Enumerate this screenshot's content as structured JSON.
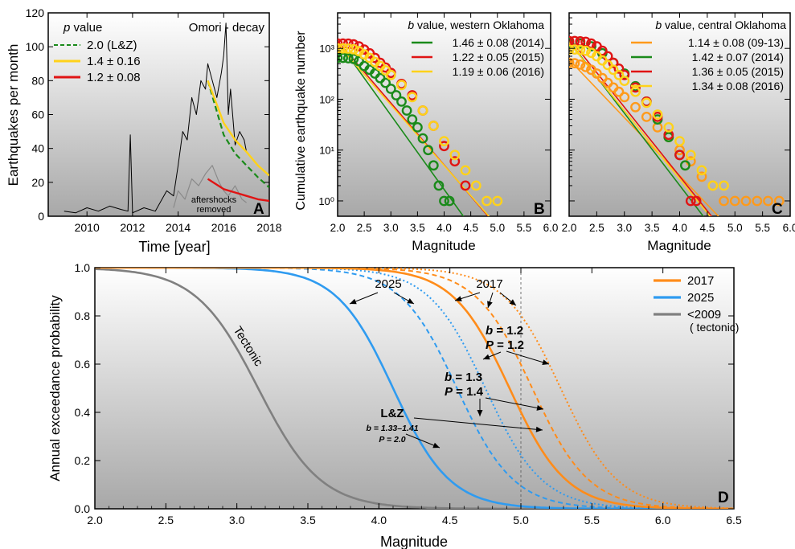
{
  "panels": {
    "A": {
      "letter": "A",
      "ylabel": "Earthquakes per month",
      "xlabel": "Time [year]",
      "xticks": [
        "2010",
        "2012",
        "2014",
        "2016",
        "2018"
      ],
      "yticks": [
        "0",
        "20",
        "40",
        "60",
        "80",
        "100",
        "120"
      ],
      "legend_title": "p value",
      "legend_title_italic": "p",
      "legend_title_rest": " value",
      "corner_label": "Omori - decay",
      "legend": [
        {
          "label": "2.0 (L&Z)",
          "color": "#1a8a1a",
          "dash": true
        },
        {
          "label": "1.4 ± 0.16",
          "color": "#ffd21a",
          "dash": false
        },
        {
          "label": "1.2 ± 0.08",
          "color": "#e01414",
          "dash": false
        }
      ],
      "aftershock_note_1": "aftershocks",
      "aftershock_note_2": "removed"
    },
    "B": {
      "letter": "B",
      "ylabel": "Cumulative earthquake number",
      "xlabel": "Magnitude",
      "xticks": [
        "2.0",
        "2.5",
        "3.0",
        "3.5",
        "4.0",
        "4.5",
        "5.0",
        "5.5",
        "6.0"
      ],
      "yticks": [
        "10⁰",
        "10¹",
        "10²",
        "10³"
      ],
      "legend_title_italic": "b",
      "legend_title_rest": " value,  western Oklahoma",
      "legend": [
        {
          "label": "1.46 ± 0.08 (2014)",
          "color": "#1a8a1a"
        },
        {
          "label": "1.22 ± 0.05 (2015)",
          "color": "#e01414"
        },
        {
          "label": "1.19 ± 0.06 (2016)",
          "color": "#ffd21a"
        }
      ]
    },
    "C": {
      "letter": "C",
      "xlabel": "Magnitude",
      "xticks": [
        "2.0",
        "2.5",
        "3.0",
        "3.5",
        "4.0",
        "4.5",
        "5.0",
        "5.5",
        "6.0"
      ],
      "legend_title_italic": "b",
      "legend_title_rest": " value, central Oklahoma",
      "legend": [
        {
          "label": "1.14 ± 0.08 (09-13)",
          "color": "#ff9a1a"
        },
        {
          "label": "1.42 ± 0.07 (2014)",
          "color": "#1a8a1a"
        },
        {
          "label": "1.36 ± 0.05 (2015)",
          "color": "#e01414"
        },
        {
          "label": "1.34 ± 0.08 (2016)",
          "color": "#ffd21a"
        }
      ]
    },
    "D": {
      "letter": "D",
      "ylabel": "Annual exceedance probability",
      "xlabel": "Magnitude",
      "xticks": [
        "2.0",
        "2.5",
        "3.0",
        "3.5",
        "4.0",
        "4.5",
        "5.0",
        "5.5",
        "6.0",
        "6.5"
      ],
      "yticks": [
        "0.0",
        "0.2",
        "0.4",
        "0.6",
        "0.8",
        "1.0"
      ],
      "legend": [
        {
          "label": "2017",
          "color": "#ff8c1a"
        },
        {
          "label": "2025",
          "color": "#2f9bf0"
        },
        {
          "label": "<2009",
          "color": "#808080"
        }
      ],
      "legend_sub": "( tectonic)",
      "annotations": {
        "tectonic": "Tectonic",
        "y2025": "2025",
        "y2017": "2017",
        "b12": "b = 1.2",
        "p12": "P = 1.2",
        "b13": "b = 1.3",
        "p14": "P = 1.4",
        "lz": "L&Z",
        "lz_b": "b = 1.33–1.41",
        "lz_p": "P = 2.0"
      }
    }
  },
  "colors": {
    "green": "#1a8a1a",
    "red": "#e01414",
    "yellow": "#ffd21a",
    "orange": "#ff8c1a",
    "orange_light": "#ff9a1a",
    "blue": "#2f9bf0",
    "gray": "#808080"
  },
  "chart_data": [
    {
      "panel": "A",
      "type": "line",
      "title": "",
      "xlabel": "Time [year]",
      "ylabel": "Earthquakes per month",
      "xlim": [
        2008.3,
        2018
      ],
      "ylim": [
        0,
        120
      ],
      "series": [
        {
          "name": "monthly count",
          "x": [
            2009.0,
            2009.5,
            2010.0,
            2010.5,
            2011.0,
            2011.5,
            2011.8,
            2011.9,
            2012.0,
            2012.5,
            2013.0,
            2013.5,
            2013.8,
            2014.0,
            2014.2,
            2014.4,
            2014.6,
            2014.8,
            2015.0,
            2015.2,
            2015.3,
            2015.5,
            2015.7,
            2015.9,
            2016.0,
            2016.1,
            2016.2,
            2016.3,
            2016.5,
            2016.7,
            2016.9,
            2017.0
          ],
          "y": [
            3,
            2,
            5,
            3,
            6,
            4,
            3,
            48,
            2,
            5,
            3,
            15,
            12,
            30,
            50,
            45,
            70,
            60,
            80,
            75,
            90,
            80,
            70,
            85,
            95,
            114,
            60,
            75,
            42,
            50,
            45,
            38
          ]
        },
        {
          "name": "aftershocks removed",
          "x": [
            2013.8,
            2014.0,
            2014.3,
            2014.6,
            2014.9,
            2015.2,
            2015.5,
            2015.8,
            2016.0,
            2016.2,
            2016.5,
            2016.8,
            2017.0
          ],
          "y": [
            5,
            15,
            10,
            22,
            18,
            25,
            30,
            20,
            15,
            12,
            18,
            10,
            8
          ]
        },
        {
          "name": "2.0 (L&Z)",
          "x": [
            2015.3,
            2016,
            2016.5,
            2017,
            2017.5,
            2018
          ],
          "y": [
            80,
            48,
            37,
            30,
            23,
            17
          ]
        },
        {
          "name": "1.4 ± 0.16",
          "x": [
            2015.3,
            2016,
            2016.5,
            2017,
            2017.5,
            2018
          ],
          "y": [
            80,
            55,
            45,
            38,
            30,
            24
          ]
        },
        {
          "name": "1.2 ± 0.08",
          "x": [
            2015.3,
            2016,
            2016.5,
            2017,
            2017.5,
            2018
          ],
          "y": [
            22,
            16,
            14,
            12,
            10,
            9
          ]
        }
      ]
    },
    {
      "panel": "B",
      "type": "scatter",
      "title": "",
      "xlabel": "Magnitude",
      "ylabel": "Cumulative earthquake number",
      "xlim": [
        2.0,
        6.0
      ],
      "ylim": [
        0.5,
        5000
      ],
      "yscale": "log",
      "series": [
        {
          "name": "1.46 ± 0.08 (2014)",
          "fit": {
            "a_at_2": 1400,
            "b": 1.46
          },
          "x": [
            2.0,
            2.1,
            2.2,
            2.3,
            2.4,
            2.5,
            2.6,
            2.7,
            2.8,
            2.9,
            3.0,
            3.1,
            3.2,
            3.3,
            3.4,
            3.5,
            3.6,
            3.7,
            3.8,
            3.9,
            4.0,
            4.1
          ],
          "y": [
            650,
            650,
            640,
            620,
            560,
            450,
            380,
            320,
            260,
            210,
            160,
            120,
            90,
            60,
            40,
            28,
            17,
            10,
            5,
            2,
            1,
            1
          ]
        },
        {
          "name": "1.22 ± 0.05 (2015)",
          "fit": {
            "a_at_2": 1400,
            "b": 1.22
          },
          "x": [
            2.0,
            2.1,
            2.2,
            2.3,
            2.4,
            2.5,
            2.6,
            2.7,
            2.8,
            2.9,
            3.0,
            3.2,
            3.4,
            3.6,
            3.8,
            4.0,
            4.2,
            4.4
          ],
          "y": [
            1250,
            1250,
            1240,
            1200,
            1100,
            950,
            800,
            650,
            520,
            420,
            330,
            200,
            120,
            60,
            30,
            12,
            6,
            2
          ]
        },
        {
          "name": "1.19 ± 0.06 (2016)",
          "fit": {
            "a_at_2": 1200,
            "b": 1.19
          },
          "x": [
            2.0,
            2.1,
            2.2,
            2.3,
            2.4,
            2.5,
            2.6,
            2.7,
            2.8,
            2.9,
            3.0,
            3.2,
            3.4,
            3.6,
            3.8,
            4.0,
            4.2,
            4.4,
            4.6,
            4.8,
            5.0
          ],
          "y": [
            1000,
            1000,
            990,
            960,
            880,
            760,
            650,
            540,
            450,
            370,
            300,
            190,
            110,
            60,
            30,
            15,
            8,
            4,
            2,
            1,
            1
          ]
        }
      ]
    },
    {
      "panel": "C",
      "type": "scatter",
      "title": "",
      "xlabel": "Magnitude",
      "ylabel": "",
      "xlim": [
        2.0,
        6.0
      ],
      "ylim": [
        0.5,
        5000
      ],
      "yscale": "log",
      "series": [
        {
          "name": "1.14 ± 0.08 (09-13)",
          "fit": {
            "a_at_2": 600,
            "b": 1.14
          },
          "x": [
            2.0,
            2.1,
            2.2,
            2.3,
            2.4,
            2.5,
            2.6,
            2.7,
            2.8,
            2.9,
            3.0,
            3.2,
            3.4,
            3.6,
            3.8,
            4.0,
            4.2,
            4.4,
            4.6,
            4.8,
            5.0,
            5.2,
            5.4,
            5.6,
            5.8
          ],
          "y": [
            520,
            510,
            480,
            430,
            380,
            320,
            260,
            210,
            170,
            140,
            110,
            70,
            45,
            28,
            18,
            10,
            6,
            3,
            2,
            1,
            1,
            1,
            1,
            1,
            1
          ]
        },
        {
          "name": "1.42 ± 0.07 (2014)",
          "fit": {
            "a_at_2": 1400,
            "b": 1.42
          },
          "x": [
            2.0,
            2.2,
            2.4,
            2.6,
            2.8,
            3.0,
            3.2,
            3.4,
            3.6,
            3.8,
            4.0,
            4.1
          ],
          "y": [
            1300,
            1250,
            1100,
            800,
            520,
            320,
            180,
            90,
            40,
            18,
            8,
            5
          ]
        },
        {
          "name": "1.36 ± 0.05 (2015)",
          "fit": {
            "a_at_2": 1600,
            "b": 1.36
          },
          "x": [
            2.0,
            2.1,
            2.2,
            2.3,
            2.4,
            2.5,
            2.6,
            2.7,
            2.8,
            2.9,
            3.0,
            3.2,
            3.4,
            3.6,
            3.8,
            4.0,
            4.2,
            4.3
          ],
          "y": [
            1400,
            1400,
            1380,
            1350,
            1250,
            1100,
            900,
            700,
            520,
            400,
            300,
            170,
            90,
            45,
            20,
            8,
            1,
            1
          ]
        },
        {
          "name": "1.34 ± 0.08 (2016)",
          "fit": {
            "a_at_2": 1300,
            "b": 1.34
          },
          "x": [
            2.0,
            2.1,
            2.2,
            2.3,
            2.4,
            2.5,
            2.6,
            2.7,
            2.8,
            2.9,
            3.0,
            3.2,
            3.4,
            3.6,
            3.8,
            4.0,
            4.2,
            4.4,
            4.6,
            4.8
          ],
          "y": [
            950,
            950,
            930,
            900,
            820,
            700,
            580,
            470,
            380,
            300,
            230,
            140,
            85,
            50,
            28,
            15,
            8,
            4,
            2,
            2
          ]
        }
      ]
    },
    {
      "panel": "D",
      "type": "line",
      "title": "",
      "xlabel": "Magnitude",
      "ylabel": "Annual exceedance probability",
      "xlim": [
        2.0,
        6.5
      ],
      "ylim": [
        0.0,
        1.0
      ],
      "series": [
        {
          "name": "<2009 (tectonic)",
          "style": "solid",
          "color": "#808080",
          "M50": 3.15,
          "width": 0.22
        },
        {
          "name": "2025",
          "style": "solid",
          "color": "#2f9bf0",
          "M50": 4.1,
          "width": 0.2
        },
        {
          "name": "2025 (b=1.3, P=1.4)",
          "style": "dashed",
          "color": "#2f9bf0",
          "M50": 4.55,
          "width": 0.2
        },
        {
          "name": "2025 (b=1.2, P=1.2)",
          "style": "dotted",
          "color": "#2f9bf0",
          "M50": 4.75,
          "width": 0.2
        },
        {
          "name": "2017",
          "style": "solid",
          "color": "#ff8c1a",
          "M50": 4.92,
          "width": 0.2
        },
        {
          "name": "2017 (b=1.3, P=1.4)",
          "style": "dashed",
          "color": "#ff8c1a",
          "M50": 5.08,
          "width": 0.2
        },
        {
          "name": "2017 (b=1.2, P=1.2)",
          "style": "dotted",
          "color": "#ff8c1a",
          "M50": 5.28,
          "width": 0.2
        }
      ],
      "reference_line_x": 5.0
    }
  ]
}
